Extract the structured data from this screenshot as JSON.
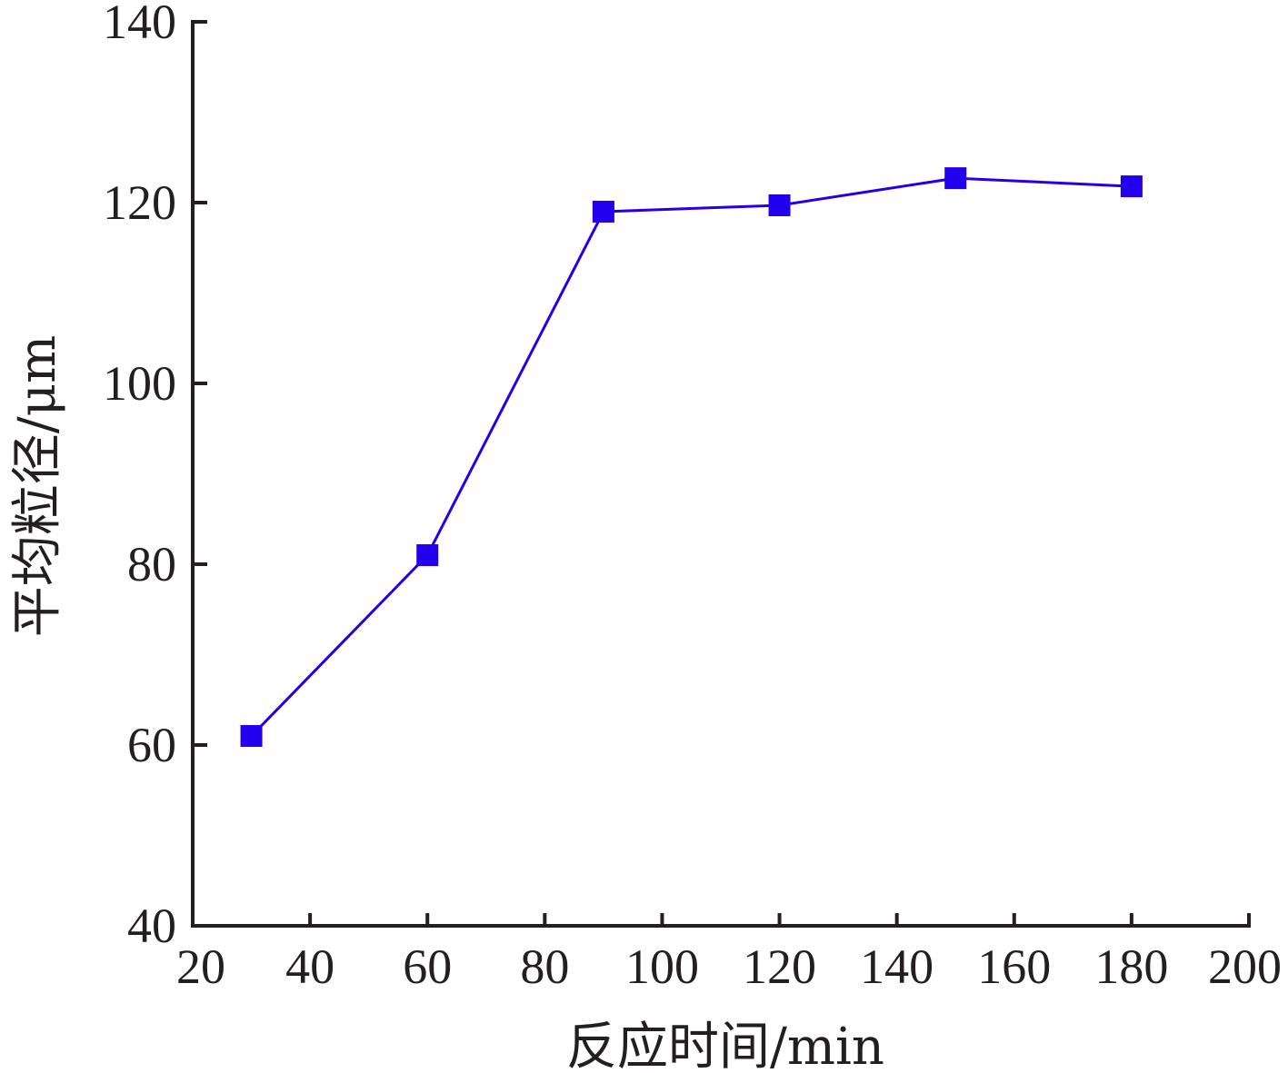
{
  "chart_data": {
    "type": "line",
    "xlabel": "反应时间/min",
    "ylabel": "平均粒径/μm",
    "xlim": [
      20,
      200
    ],
    "ylim": [
      40,
      140
    ],
    "x_ticks": [
      20,
      40,
      60,
      80,
      100,
      120,
      140,
      160,
      180,
      200
    ],
    "y_ticks": [
      40,
      60,
      80,
      100,
      120,
      140
    ],
    "grid": false,
    "marker": "square",
    "series": [
      {
        "x": [
          30,
          60,
          90,
          120,
          150,
          180
        ],
        "values": [
          61,
          81,
          119,
          119.7,
          122.7,
          121.8
        ]
      }
    ],
    "colors": {
      "series": "#2200ee",
      "axis": "#231f20"
    }
  }
}
